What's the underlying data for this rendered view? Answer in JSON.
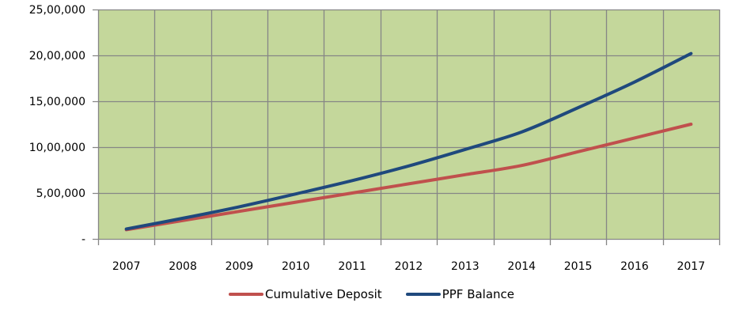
{
  "chart_data": {
    "type": "line",
    "title": "",
    "xlabel": "",
    "ylabel": "",
    "categories": [
      "2007",
      "2008",
      "2009",
      "2010",
      "2011",
      "2012",
      "2013",
      "2014",
      "2015",
      "2016",
      "2017"
    ],
    "series": [
      {
        "name": "Cumulative Deposit",
        "color": "#c0504d",
        "values": [
          100000,
          200000,
          300000,
          400000,
          500000,
          600000,
          700000,
          800000,
          950000,
          1100000,
          1250000
        ]
      },
      {
        "name": "PPF Balance",
        "color": "#1f497d",
        "values": [
          108000,
          225000,
          350000,
          490000,
          635000,
          795000,
          975000,
          1165000,
          1430000,
          1710000,
          2020000
        ]
      }
    ],
    "ylim": [
      0,
      2500000
    ],
    "yticks": [
      0,
      500000,
      1000000,
      1500000,
      2000000,
      2500000
    ],
    "ytick_labels": [
      "-",
      "5,00,000",
      "10,00,000",
      "15,00,000",
      "20,00,000",
      "25,00,000"
    ],
    "grid": true,
    "plot_background": "#c4d79b",
    "grid_color": "#868686",
    "legend_position": "bottom"
  },
  "legend": {
    "items": [
      {
        "label": "Cumulative Deposit",
        "color": "#c0504d"
      },
      {
        "label": "PPF Balance",
        "color": "#1f497d"
      }
    ]
  }
}
